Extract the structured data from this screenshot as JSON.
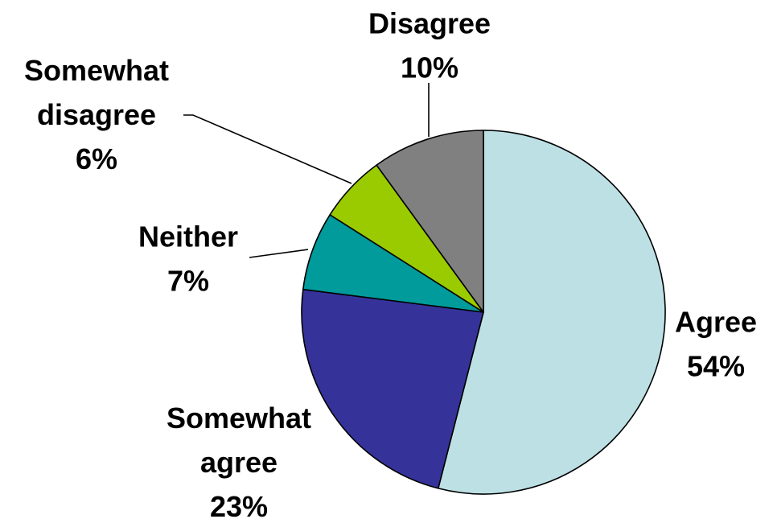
{
  "chart_data": {
    "type": "pie",
    "title": "",
    "legend": "none",
    "start": "12 o'clock",
    "direction": "clockwise",
    "slices": [
      {
        "name": "Agree",
        "value": 54,
        "label_lines": [
          "Agree"
        ],
        "pct_label": "54%",
        "color": "#BDE0E5"
      },
      {
        "name": "Somewhat agree",
        "value": 23,
        "label_lines": [
          "Somewhat",
          "agree"
        ],
        "pct_label": "23%",
        "color": "#35339A"
      },
      {
        "name": "Neither",
        "value": 7,
        "label_lines": [
          "Neither"
        ],
        "pct_label": "7%",
        "color": "#009B9A"
      },
      {
        "name": "Somewhat disagree",
        "value": 6,
        "label_lines": [
          "Somewhat",
          "disagree"
        ],
        "pct_label": "6%",
        "color": "#9ACB00"
      },
      {
        "name": "Disagree",
        "value": 10,
        "label_lines": [
          "Disagree"
        ],
        "pct_label": "10%",
        "color": "#808080"
      }
    ]
  }
}
